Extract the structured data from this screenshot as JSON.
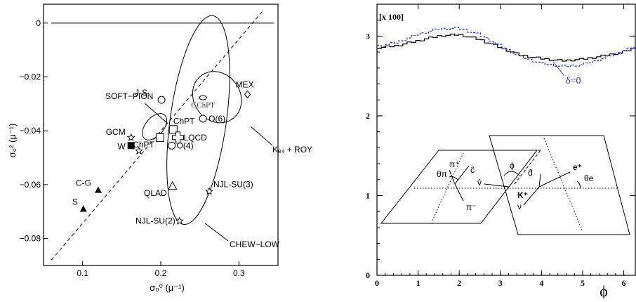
{
  "chart_data": [
    {
      "type": "scatter",
      "xlabel": "σ₀⁰ (μ⁻¹)",
      "ylabel": "σ₀² (μ⁻¹)",
      "xlim": [
        0.05,
        0.35
      ],
      "ylim": [
        -0.09,
        0.007
      ],
      "xticks": [
        "0.1",
        "0.2",
        "0.3"
      ],
      "yticks": [
        "0",
        "−0.02",
        "−0.04",
        "−0.06",
        "−0.08"
      ],
      "dashed_line_label": "",
      "points": [
        {
          "label": "J-S",
          "x": 0.201,
          "y": -0.0285,
          "marker": "circle"
        },
        {
          "label": "MEX",
          "x": 0.311,
          "y": -0.0265,
          "marker": "diamond"
        },
        {
          "label": "GChPT",
          "x": 0.254,
          "y": -0.0277,
          "marker": "small-ellipse"
        },
        {
          "label": "O(6)",
          "x": 0.254,
          "y": -0.0355,
          "marker": "circle"
        },
        {
          "label": "ChPT",
          "x": 0.216,
          "y": -0.0395,
          "marker": "square"
        },
        {
          "label": "LQCD",
          "x": 0.222,
          "y": -0.0425,
          "marker": "cross"
        },
        {
          "label": "ChPT",
          "x": 0.199,
          "y": -0.0425,
          "marker": "square"
        },
        {
          "label": "O(4)",
          "x": 0.214,
          "y": -0.0455,
          "marker": "circle"
        },
        {
          "label": "GCM",
          "x": 0.162,
          "y": -0.0425,
          "marker": "star"
        },
        {
          "label": "W",
          "x": 0.162,
          "y": -0.0455,
          "marker": "filled-square"
        },
        {
          "label": "",
          "x": 0.172,
          "y": -0.0475,
          "marker": "star"
        },
        {
          "label": "QLAD",
          "x": 0.215,
          "y": -0.0605,
          "marker": "triangle"
        },
        {
          "label": "NJL-SU(3)",
          "x": 0.262,
          "y": -0.0625,
          "marker": "star"
        },
        {
          "label": "C-G",
          "x": 0.12,
          "y": -0.062,
          "marker": "filled-triangle"
        },
        {
          "label": "S",
          "x": 0.101,
          "y": -0.069,
          "marker": "filled-triangle"
        },
        {
          "label": "NJL-SU(2)",
          "x": 0.224,
          "y": -0.0735,
          "marker": "star"
        }
      ],
      "annotations": [
        "SOFT−PION",
        "CHEW−LOW",
        "Kₑ₄ + ROY"
      ]
    },
    {
      "type": "line",
      "corner_label": "[x 100]",
      "xlabel": "ϕ",
      "xlim": [
        0,
        6.28
      ],
      "ylim": [
        0,
        3.4
      ],
      "xticks": [
        "0",
        "1",
        "2",
        "3",
        "4",
        "5",
        "6"
      ],
      "yticks": [
        "0",
        "1",
        "2",
        "3"
      ],
      "series": [
        {
          "name": "",
          "style": "solid",
          "color": "#000000",
          "x": [
            0,
            0.5,
            1.0,
            1.5,
            2.0,
            2.5,
            3.0,
            3.5,
            4.0,
            4.5,
            5.0,
            5.5,
            6.0,
            6.28
          ],
          "y": [
            2.85,
            2.88,
            2.94,
            3.0,
            3.02,
            2.96,
            2.86,
            2.76,
            2.72,
            2.69,
            2.71,
            2.75,
            2.8,
            2.85
          ]
        },
        {
          "name": "δ=0",
          "style": "dashed",
          "color": "#1f2fd8",
          "x": [
            0,
            0.5,
            1.0,
            1.5,
            2.0,
            2.5,
            3.0,
            3.5,
            4.0,
            4.5,
            5.0,
            5.5,
            6.0,
            6.28
          ],
          "y": [
            2.87,
            2.92,
            3.02,
            3.09,
            3.1,
            3.02,
            2.88,
            2.74,
            2.66,
            2.62,
            2.64,
            2.72,
            2.81,
            2.87
          ]
        }
      ],
      "inset_labels": {
        "theta_pi": "θπ",
        "pi_plus": "π⁺",
        "pi_minus": "π⁻",
        "c_hat": "ĉ",
        "v_hat": "v̂",
        "phi": "ϕ",
        "K_plus": "K⁺",
        "d_hat": "d̂",
        "e_plus": "e⁺",
        "nu": "ν",
        "theta_e": "θe"
      }
    }
  ],
  "colors": {
    "axis": "#000000",
    "blue": "#1f2fd8"
  }
}
